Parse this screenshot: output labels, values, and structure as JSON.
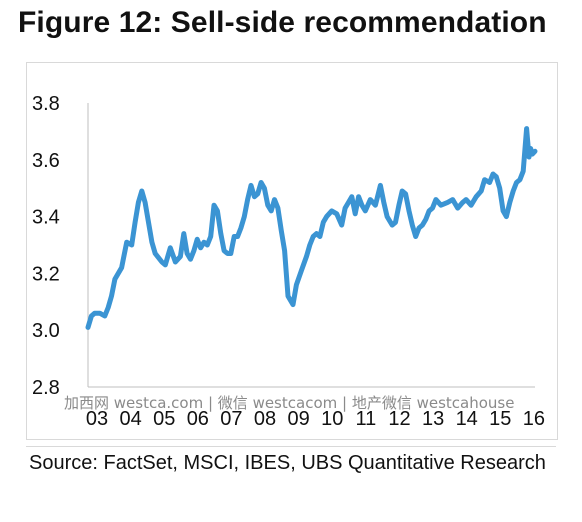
{
  "header": {
    "title": "Figure 12: Sell-side recommendation"
  },
  "footer": {
    "source": "Source: FactSet, MSCI, IBES, UBS Quantitative Research"
  },
  "watermark": "加西网 westca.com | 微信 westcacom | 地产微信 westcahouse",
  "chart_data": {
    "type": "line",
    "title": "",
    "xlabel": "",
    "ylabel": "",
    "ylim": [
      2.8,
      3.8
    ],
    "yticks": [
      "3.8",
      "3.6",
      "3.4",
      "3.2",
      "3.0",
      "2.8"
    ],
    "xlim": [
      2003.0,
      2016.3
    ],
    "xticks": [
      "03",
      "04",
      "05",
      "06",
      "07",
      "08",
      "09",
      "10",
      "11",
      "12",
      "13",
      "14",
      "15",
      "16"
    ],
    "grid": false,
    "legend": "none",
    "line_color": "#3b94d3",
    "series": [
      {
        "x": [
          2003.0,
          2003.1,
          2003.2,
          2003.35,
          2003.5,
          2003.6,
          2003.7,
          2003.8,
          2004.0,
          2004.15,
          2004.3,
          2004.4,
          2004.5,
          2004.6,
          2004.7,
          2004.8,
          2004.9,
          2005.0,
          2005.2,
          2005.3,
          2005.45,
          2005.6,
          2005.75,
          2005.85,
          2005.95,
          2006.05,
          2006.15,
          2006.25,
          2006.35,
          2006.45,
          2006.55,
          2006.65,
          2006.75,
          2006.85,
          2006.95,
          2007.05,
          2007.15,
          2007.25,
          2007.35,
          2007.45,
          2007.55,
          2007.65,
          2007.75,
          2007.85,
          2007.95,
          2008.05,
          2008.15,
          2008.25,
          2008.35,
          2008.45,
          2008.55,
          2008.65,
          2008.75,
          2008.85,
          2008.95,
          2009.0,
          2009.1,
          2009.2,
          2009.35,
          2009.5,
          2009.6,
          2009.7,
          2009.8,
          2009.9,
          2010.0,
          2010.1,
          2010.25,
          2010.4,
          2010.55,
          2010.65,
          2010.75,
          2010.85,
          2010.95,
          2011.05,
          2011.15,
          2011.25,
          2011.4,
          2011.55,
          2011.7,
          2011.8,
          2011.9,
          2012.05,
          2012.15,
          2012.25,
          2012.35,
          2012.45,
          2012.55,
          2012.65,
          2012.75,
          2012.85,
          2012.95,
          2013.05,
          2013.15,
          2013.25,
          2013.35,
          2013.5,
          2013.7,
          2013.85,
          2014.0,
          2014.15,
          2014.25,
          2014.4,
          2014.55,
          2014.7,
          2014.8,
          2014.95,
          2015.05,
          2015.15,
          2015.25,
          2015.35,
          2015.45,
          2015.55,
          2015.65,
          2015.75,
          2015.85,
          2015.95,
          2016.05,
          2016.12,
          2016.17,
          2016.22,
          2016.3
        ],
        "y": [
          3.01,
          3.05,
          3.06,
          3.06,
          3.05,
          3.08,
          3.12,
          3.18,
          3.22,
          3.31,
          3.3,
          3.38,
          3.45,
          3.49,
          3.45,
          3.38,
          3.31,
          3.27,
          3.24,
          3.23,
          3.29,
          3.24,
          3.26,
          3.34,
          3.27,
          3.25,
          3.28,
          3.32,
          3.29,
          3.31,
          3.3,
          3.33,
          3.44,
          3.42,
          3.34,
          3.28,
          3.27,
          3.27,
          3.33,
          3.33,
          3.36,
          3.4,
          3.46,
          3.51,
          3.47,
          3.48,
          3.52,
          3.5,
          3.44,
          3.42,
          3.46,
          3.43,
          3.35,
          3.28,
          3.12,
          3.11,
          3.09,
          3.16,
          3.21,
          3.26,
          3.3,
          3.33,
          3.34,
          3.33,
          3.38,
          3.4,
          3.42,
          3.41,
          3.37,
          3.43,
          3.45,
          3.47,
          3.41,
          3.47,
          3.44,
          3.42,
          3.46,
          3.44,
          3.51,
          3.45,
          3.4,
          3.37,
          3.38,
          3.44,
          3.49,
          3.48,
          3.42,
          3.37,
          3.33,
          3.36,
          3.37,
          3.39,
          3.42,
          3.43,
          3.46,
          3.44,
          3.45,
          3.46,
          3.43,
          3.45,
          3.46,
          3.44,
          3.47,
          3.49,
          3.53,
          3.52,
          3.55,
          3.54,
          3.5,
          3.42,
          3.4,
          3.45,
          3.49,
          3.52,
          3.53,
          3.56,
          3.71,
          3.61,
          3.64,
          3.62,
          3.63
        ]
      }
    ]
  }
}
